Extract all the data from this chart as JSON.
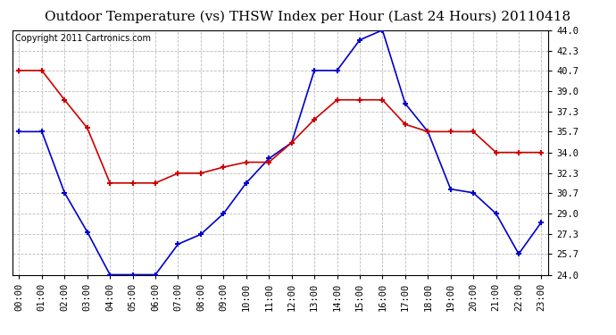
{
  "title": "Outdoor Temperature (vs) THSW Index per Hour (Last 24 Hours) 20110418",
  "copyright": "Copyright 2011 Cartronics.com",
  "hours": [
    "00:00",
    "01:00",
    "02:00",
    "03:00",
    "04:00",
    "05:00",
    "06:00",
    "07:00",
    "08:00",
    "09:00",
    "10:00",
    "11:00",
    "12:00",
    "13:00",
    "14:00",
    "15:00",
    "16:00",
    "17:00",
    "18:00",
    "19:00",
    "20:00",
    "21:00",
    "22:00",
    "23:00"
  ],
  "temp": [
    40.7,
    40.7,
    38.3,
    36.0,
    31.5,
    31.5,
    31.5,
    32.3,
    32.3,
    32.8,
    33.2,
    33.2,
    34.8,
    36.7,
    38.3,
    38.3,
    38.3,
    36.3,
    35.7,
    35.7,
    35.7,
    34.0,
    34.0,
    34.0
  ],
  "thsw": [
    35.7,
    35.7,
    30.7,
    27.5,
    24.0,
    24.0,
    24.0,
    26.5,
    27.3,
    29.0,
    31.5,
    33.5,
    34.8,
    40.7,
    40.7,
    43.2,
    44.0,
    38.0,
    35.7,
    31.0,
    30.7,
    29.0,
    25.7,
    28.3
  ],
  "temp_color": "#cc0000",
  "thsw_color": "#0000cc",
  "bg_color": "#ffffff",
  "plot_bg_color": "#ffffff",
  "grid_color": "#bbbbbb",
  "ylim_min": 24.0,
  "ylim_max": 44.0,
  "yticks": [
    24.0,
    25.7,
    27.3,
    29.0,
    30.7,
    32.3,
    34.0,
    35.7,
    37.3,
    39.0,
    40.7,
    42.3,
    44.0
  ],
  "title_fontsize": 11,
  "copyright_fontsize": 7,
  "tick_fontsize": 7.5
}
